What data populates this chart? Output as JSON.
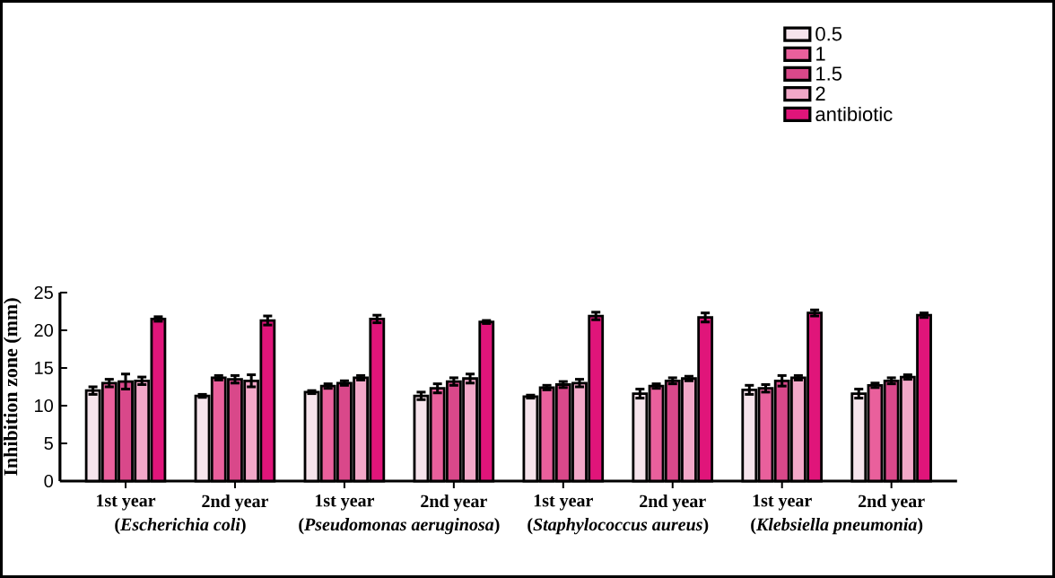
{
  "chart_data": {
    "type": "bar",
    "ylabel": "Inhibition zone (mm)",
    "categories": [
      "1st year",
      "2nd year",
      "1st year",
      "2nd year",
      "1st year",
      "2nd year",
      "1st year",
      "2nd year"
    ],
    "annotations": [
      "(*Escherichia coli*)",
      "(*Pseudomonas aeruginosa*)",
      "(*Staphylococcus aureus*)",
      "(*Klebsiella pneumonia*)"
    ],
    "series": [
      {
        "name": "0.5",
        "color": "#f6e4ec",
        "values": [
          12.0,
          11.3,
          11.8,
          11.3,
          11.2,
          11.6,
          12.1,
          11.6
        ],
        "errors": [
          0.5,
          0.2,
          0.2,
          0.5,
          0.2,
          0.6,
          0.6,
          0.6
        ]
      },
      {
        "name": "1",
        "color": "#e9609c",
        "values": [
          13.0,
          13.7,
          12.6,
          12.3,
          12.4,
          12.6,
          12.3,
          12.7
        ],
        "errors": [
          0.5,
          0.3,
          0.3,
          0.6,
          0.3,
          0.3,
          0.5,
          0.3
        ]
      },
      {
        "name": "1.5",
        "color": "#d9488a",
        "values": [
          13.2,
          13.5,
          13.0,
          13.2,
          12.8,
          13.3,
          13.3,
          13.3
        ],
        "errors": [
          1.0,
          0.5,
          0.3,
          0.5,
          0.4,
          0.4,
          0.7,
          0.4
        ]
      },
      {
        "name": "2",
        "color": "#f2a8c8",
        "values": [
          13.3,
          13.3,
          13.7,
          13.6,
          13.0,
          13.6,
          13.7,
          13.8
        ],
        "errors": [
          0.5,
          0.8,
          0.3,
          0.6,
          0.5,
          0.3,
          0.3,
          0.3
        ]
      },
      {
        "name": "antibiotic",
        "color": "#e0157a",
        "values": [
          21.5,
          21.3,
          21.5,
          21.1,
          21.9,
          21.7,
          22.3,
          22.0
        ],
        "errors": [
          0.3,
          0.6,
          0.5,
          0.2,
          0.5,
          0.6,
          0.4,
          0.3
        ]
      }
    ],
    "ylim": [
      0,
      25
    ],
    "yticks": [
      0,
      5,
      10,
      15,
      20,
      25
    ],
    "legend": "top right"
  }
}
